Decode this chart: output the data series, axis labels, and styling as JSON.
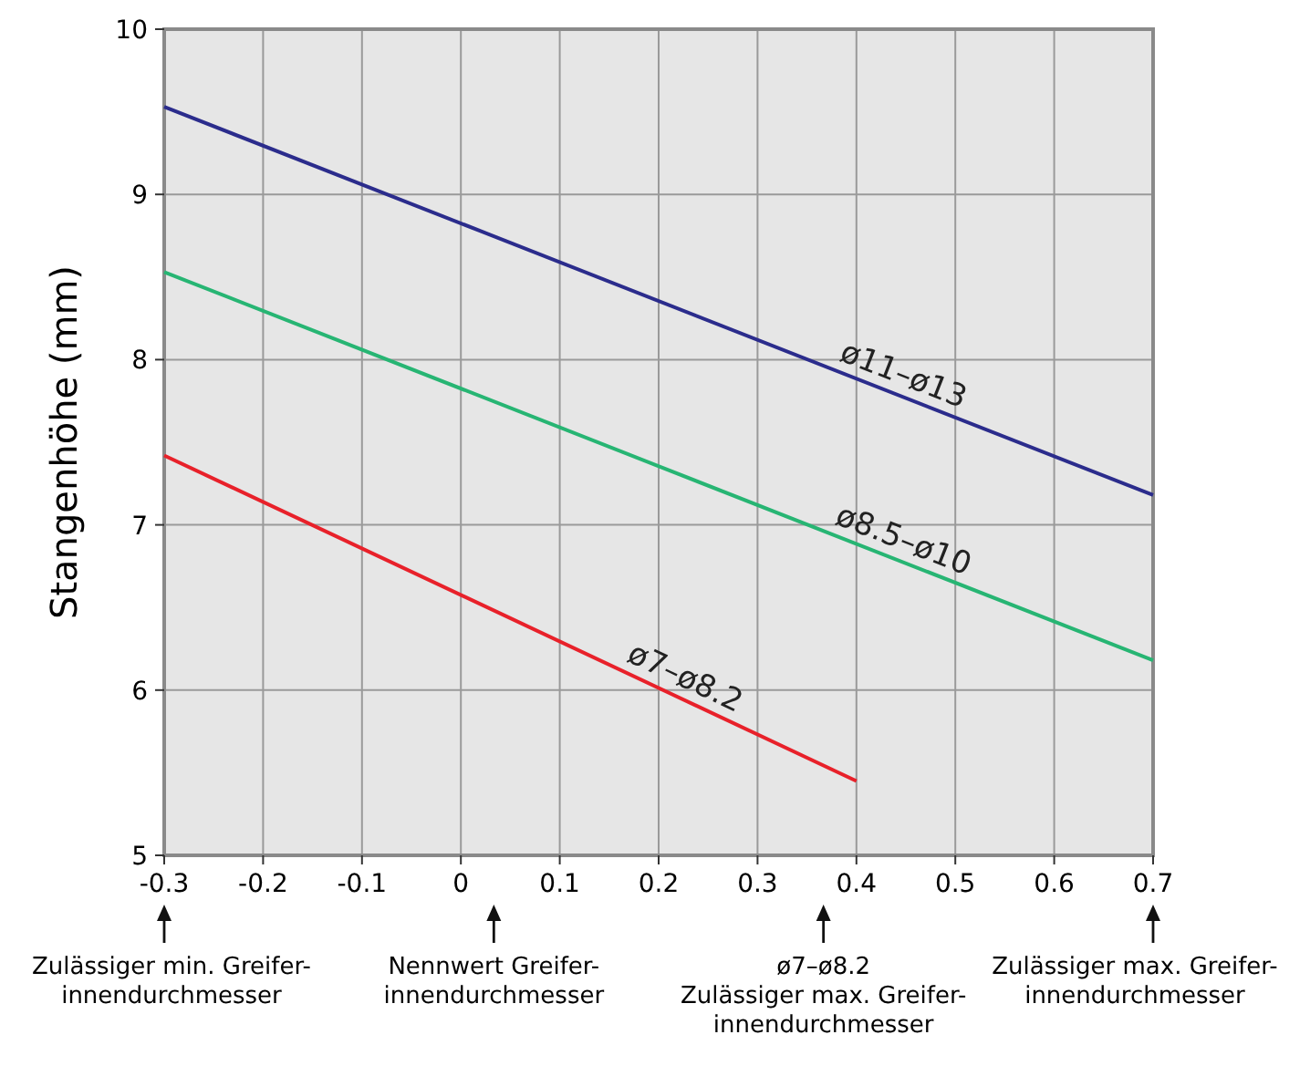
{
  "chart_data": {
    "type": "line",
    "ylabel": "Stangenhöhe (mm)",
    "x": [
      -0.3,
      0.7
    ],
    "series": [
      {
        "name": "ø11–ø13",
        "color": "#2b2c8c",
        "values": [
          9.53,
          7.18
        ]
      },
      {
        "name": "ø8.5–ø10",
        "color": "#27b573",
        "values": [
          8.53,
          6.18
        ]
      },
      {
        "name": "ø7–ø8.2",
        "color": "#e8212a",
        "x": [
          -0.3,
          0.4
        ],
        "values": [
          7.42,
          5.45
        ]
      }
    ],
    "xlim": [
      -0.3,
      0.7
    ],
    "xticks": [
      -0.3,
      -0.2,
      -0.1,
      0,
      0.1,
      0.2,
      0.3,
      0.4,
      0.5,
      0.6,
      0.7
    ],
    "ylim": [
      5,
      10
    ],
    "yticks": [
      5,
      6,
      7,
      8,
      9,
      10
    ],
    "grid": true,
    "marker": "none",
    "line_style": "solid",
    "annotations": [
      "Zulässiger min. Greifer-\ninnendurchmesser",
      "Nennwert Greifer-\ninnendurchmesser",
      "ø7–ø8.2\nZulässiger max. Greifer-\ninnendurchmesser",
      "Zulässiger max. Greifer-\ninnendurchmesser"
    ]
  }
}
